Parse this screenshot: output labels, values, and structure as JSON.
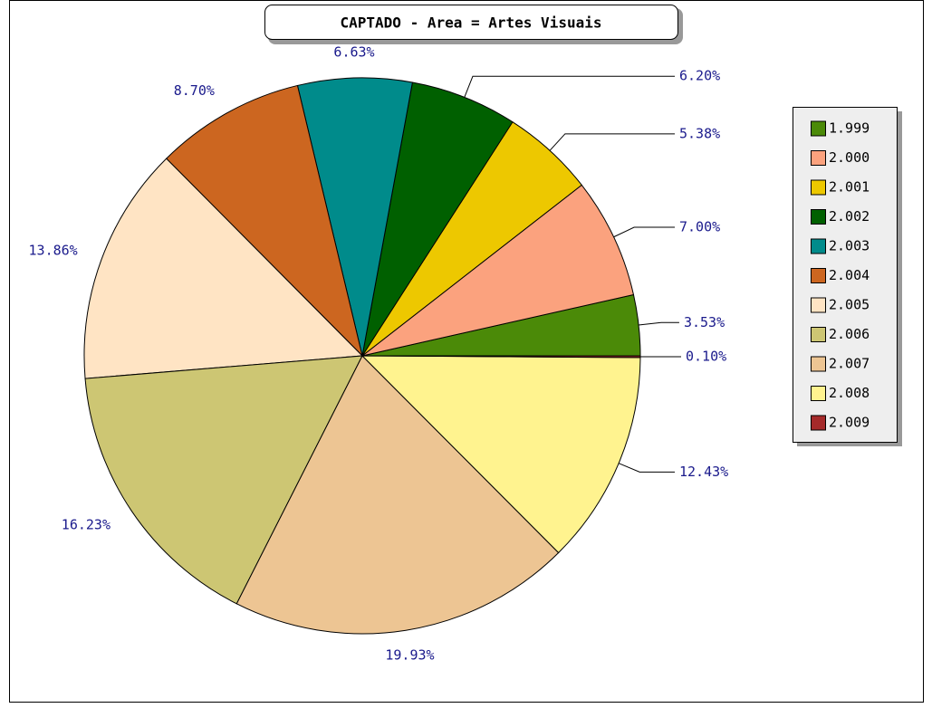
{
  "chart_data": {
    "type": "pie",
    "title": "CAPTADO - Area = Artes Visuais",
    "categories": [
      "1.999",
      "2.000",
      "2.001",
      "2.002",
      "2.003",
      "2.004",
      "2.005",
      "2.006",
      "2.007",
      "2.008",
      "2.009"
    ],
    "values": [
      3.53,
      7.0,
      5.38,
      6.2,
      6.63,
      8.7,
      13.86,
      16.23,
      19.93,
      12.43,
      0.1
    ],
    "value_labels": [
      "3.53%",
      "7.00%",
      "5.38%",
      "6.20%",
      "6.63%",
      "8.70%",
      "13.86%",
      "16.23%",
      "19.93%",
      "12.43%",
      "0.10%"
    ],
    "colors": [
      "#4b8a08",
      "#fba27e",
      "#edc800",
      "#006000",
      "#008b8b",
      "#cc6620",
      "#ffe4c4",
      "#cdc673",
      "#edc593",
      "#fff38f",
      "#a52a2a"
    ],
    "legend": "right"
  }
}
